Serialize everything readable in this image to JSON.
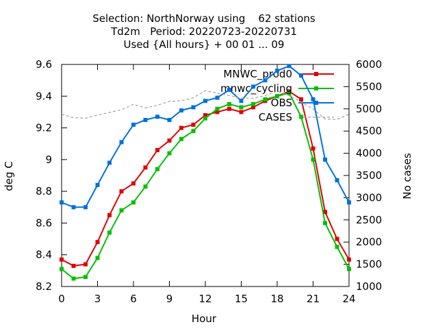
{
  "chart_data": {
    "type": "line",
    "title_lines": [
      "Selection: NorthNorway using    62 stations",
      "Td2m   Period: 20220723-20220731",
      "Used {All hours} + 00 01 ... 09"
    ],
    "xlabel": "Hour",
    "ylabel_left": "deg C",
    "ylabel_right": "No cases",
    "xlim": [
      0,
      24
    ],
    "ylim_left": [
      8.2,
      9.6
    ],
    "ylim_right": [
      1000,
      6000
    ],
    "x_ticks": [
      0,
      3,
      6,
      9,
      12,
      15,
      18,
      21,
      24
    ],
    "y_ticks_left": [
      8.2,
      8.4,
      8.6,
      8.8,
      9,
      9.2,
      9.4,
      9.6
    ],
    "y_tick_labels_left": [
      "8.2",
      "8.4",
      "8.6",
      "8.8",
      "9",
      "9.2",
      "9.4",
      "9.6"
    ],
    "y_ticks_right": [
      1000,
      1500,
      2000,
      2500,
      3000,
      3500,
      4000,
      4500,
      5000,
      5500,
      6000
    ],
    "grid": false,
    "legend_position": "top-right",
    "x": [
      0,
      1,
      2,
      3,
      4,
      5,
      6,
      7,
      8,
      9,
      10,
      11,
      12,
      13,
      14,
      15,
      16,
      17,
      18,
      19,
      20,
      21,
      22,
      23,
      24
    ],
    "series": [
      {
        "name": "MNWC_prod0",
        "color": "#e00000",
        "axis": "left",
        "values": [
          8.37,
          8.33,
          8.34,
          8.48,
          8.65,
          8.8,
          8.85,
          8.95,
          9.06,
          9.12,
          9.2,
          9.22,
          9.28,
          9.3,
          9.32,
          9.3,
          9.33,
          9.37,
          9.4,
          9.43,
          9.38,
          9.07,
          8.67,
          8.5,
          8.37
        ]
      },
      {
        "name": "mnwc_cycling",
        "color": "#00c000",
        "axis": "left",
        "values": [
          8.31,
          8.25,
          8.26,
          8.38,
          8.54,
          8.68,
          8.73,
          8.83,
          8.94,
          9.04,
          9.13,
          9.18,
          9.26,
          9.32,
          9.35,
          9.33,
          9.35,
          9.38,
          9.4,
          9.42,
          9.27,
          9.0,
          8.6,
          8.45,
          8.31
        ]
      },
      {
        "name": "OBS",
        "color": "#0070e0",
        "axis": "left",
        "values": [
          8.73,
          8.7,
          8.7,
          8.84,
          8.98,
          9.11,
          9.22,
          9.25,
          9.27,
          9.25,
          9.31,
          9.33,
          9.37,
          9.39,
          9.44,
          9.37,
          9.46,
          9.5,
          9.56,
          9.59,
          9.53,
          9.38,
          9.0,
          8.87,
          8.73
        ]
      },
      {
        "name": "CASES",
        "color": "#a0a0a0",
        "axis": "right",
        "values": [
          4880,
          4800,
          4790,
          4860,
          4920,
          4980,
          5100,
          5020,
          5080,
          5170,
          5180,
          5250,
          5410,
          5350,
          5300,
          5240,
          5240,
          5300,
          5400,
          5300,
          5150,
          5000,
          4770,
          4760,
          4880
        ]
      }
    ]
  }
}
